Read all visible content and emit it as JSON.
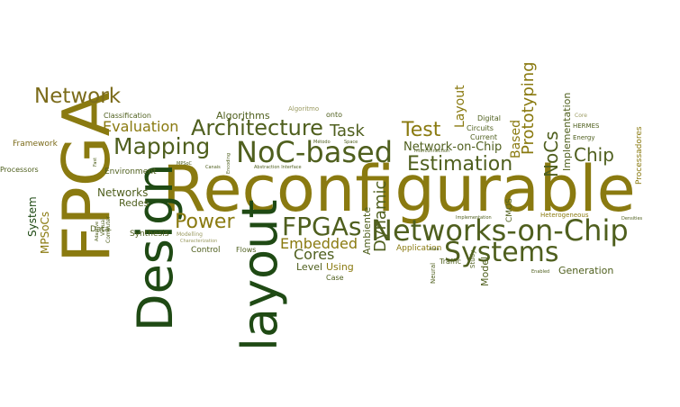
{
  "words": {
    "reconfigurable": "Reconfigurable",
    "fpga": "FPGA",
    "design": "Design",
    "layout_big": "layout",
    "networks_on_chip_big": "Networks-on-Chip",
    "noc_based": "NoC-based",
    "systems": "Systems",
    "mapping": "Mapping",
    "architecture": "Architecture",
    "fpgas": "FPGAs",
    "estimation": "Estimation",
    "network": "Network",
    "power": "Power",
    "test": "Test",
    "task": "Task",
    "evaluation": "Evaluation",
    "embedded": "Embedded",
    "cores": "Cores",
    "dynamic": "Dynamic",
    "chip": "Chip",
    "nocs": "NoCs",
    "prototyping": "Prototyping",
    "based": "Based",
    "layout_small": "Layout",
    "network_on_chip": "Network-on-Chip",
    "algorithms": "Algorithms",
    "system": "System",
    "mpsocs": "MPSoCs",
    "networks": "Networks",
    "redes": "Redes",
    "generation": "Generation",
    "implementation": "Implementation",
    "processadores": "Processadores",
    "model": "Model",
    "level": "Level",
    "using": "Using",
    "ambiente": "Ambiente",
    "classification": "Classification",
    "framework": "Framework",
    "processors": "Processors",
    "environment": "Environment",
    "data": "Data",
    "synthesis": "Synthesis",
    "control": "Control",
    "flows": "Flows",
    "case": "Case",
    "cmos": "CMOS",
    "application": "Application",
    "traffic": "Traffic",
    "neural": "Neural",
    "study": "Study",
    "digital": "Digital",
    "circuits": "Circuits",
    "current": "Current",
    "hermes": "HERMES",
    "energy": "Energy",
    "heterogeneous": "Heterogeneous",
    "algoritmo": "Algoritmo",
    "onto": "onto",
    "computer": "Computer",
    "virtual": "Virtual",
    "adaptive": "Adaptive",
    "fast": "Fast",
    "modelling": "Modelling",
    "characterization": "Characterization",
    "core": "Core",
    "metodo": "Método",
    "space": "Space",
    "interconnection": "Interconnection",
    "mpsoc": "MPSoC",
    "canais": "Canais",
    "encoding": "Encoding",
    "abstraction_interface": "Abstraction Interface",
    "implementation_small": "Implementation",
    "densities": "Densities",
    "area": "Area",
    "enabled": "Enabled"
  }
}
